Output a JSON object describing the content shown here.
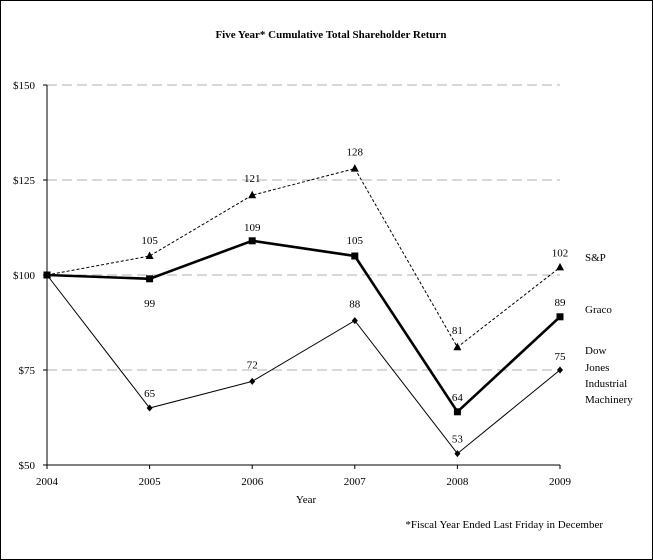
{
  "chart_data": {
    "type": "line",
    "title": "Five Year* Cumulative Total Shareholder Return",
    "xlabel": "Year",
    "ylabel": "",
    "x": [
      "2004",
      "2005",
      "2006",
      "2007",
      "2008",
      "2009"
    ],
    "ylim": [
      50,
      150
    ],
    "yticks": [
      50,
      75,
      100,
      125,
      150
    ],
    "ytick_labels": [
      "$50",
      "$75",
      "$100",
      "$125",
      "$150"
    ],
    "grid": "horizontal dashed",
    "series": [
      {
        "name": "S&P",
        "values": [
          100,
          105,
          121,
          128,
          81,
          102
        ],
        "data_labels": [
          "",
          "105",
          "121",
          "128",
          "81",
          "102"
        ],
        "marker": "triangle",
        "line_style": "dashed",
        "line_weight": "thin"
      },
      {
        "name": "Graco",
        "values": [
          100,
          99,
          109,
          105,
          64,
          89
        ],
        "data_labels": [
          "",
          "99",
          "109",
          "105",
          "64",
          "89"
        ],
        "marker": "square",
        "line_style": "solid",
        "line_weight": "thick"
      },
      {
        "name": "Dow Jones Industrial Machinery",
        "name_lines": [
          "Dow",
          "Jones",
          "Industrial",
          "Machinery"
        ],
        "values": [
          100,
          65,
          72,
          88,
          53,
          75
        ],
        "data_labels": [
          "",
          "65",
          "72",
          "88",
          "53",
          "75"
        ],
        "marker": "diamond",
        "line_style": "solid",
        "line_weight": "thin"
      }
    ],
    "footnote": "*Fiscal Year Ended Last Friday in December"
  }
}
